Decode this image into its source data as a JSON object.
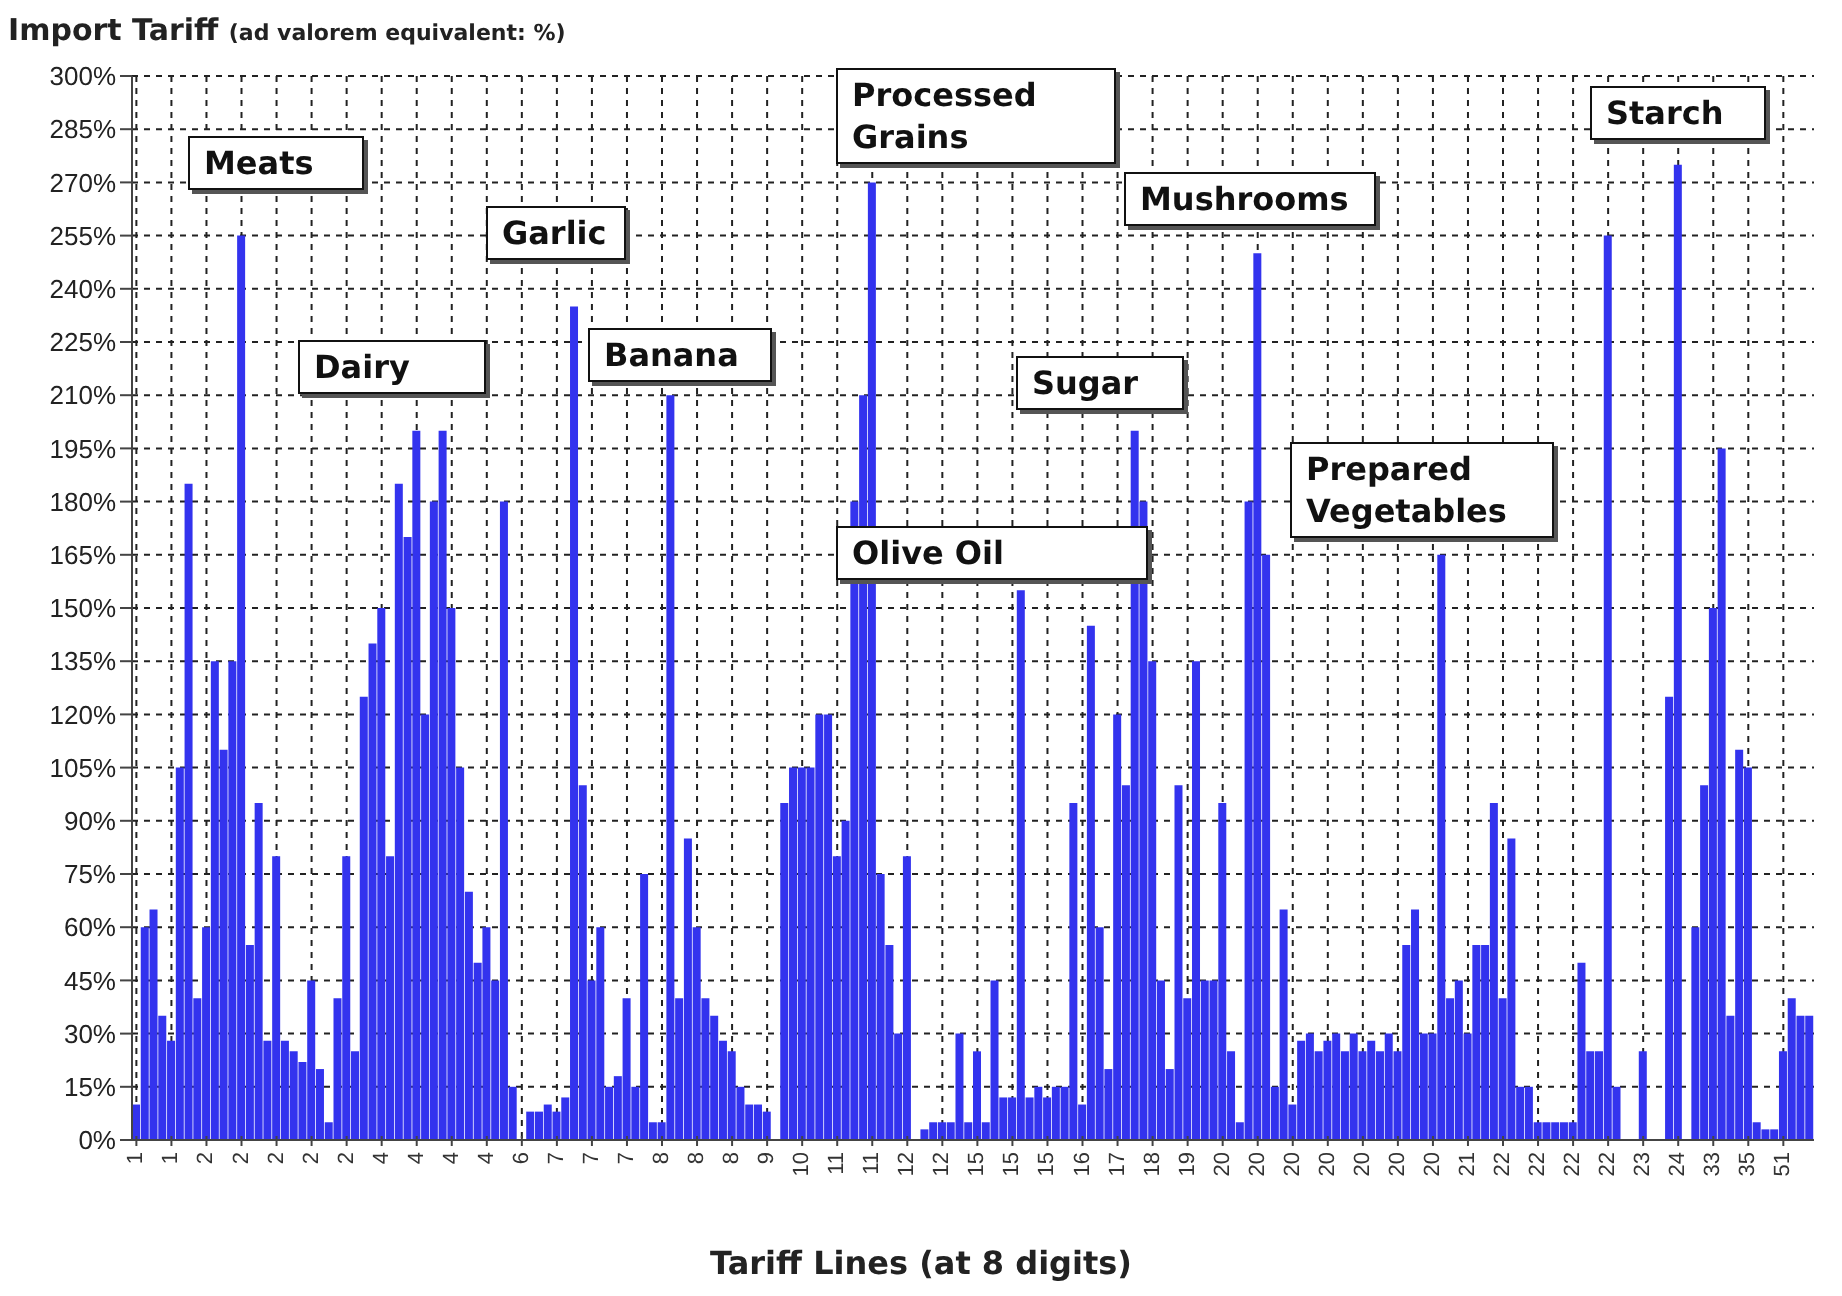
{
  "chart_data": {
    "type": "bar",
    "title": "Import Tariff",
    "subtitle": "(ad valorem equivalent: %)",
    "xlabel": "Tariff Lines (at 8 digits)",
    "categories": [
      "1",
      null,
      null,
      null,
      "1",
      null,
      null,
      null,
      "2",
      null,
      null,
      null,
      "2",
      null,
      null,
      null,
      "2",
      null,
      null,
      null,
      "2",
      null,
      null,
      null,
      "2",
      null,
      null,
      null,
      "4",
      null,
      null,
      null,
      "4",
      null,
      null,
      null,
      "4",
      null,
      null,
      null,
      "4",
      null,
      null,
      null,
      "6",
      null,
      null,
      null,
      "7",
      null,
      null,
      null,
      "7",
      null,
      null,
      null,
      "7",
      null,
      null,
      null,
      "8",
      null,
      null,
      null,
      "8",
      null,
      null,
      null,
      "8",
      null,
      null,
      null,
      "9",
      null,
      null,
      null,
      "10",
      null,
      null,
      null,
      "11",
      null,
      null,
      null,
      "11",
      null,
      null,
      null,
      "12",
      null,
      null,
      null,
      "12",
      null,
      null,
      null,
      "15",
      null,
      null,
      null,
      "15",
      null,
      null,
      null,
      "15",
      null,
      null,
      null,
      "16",
      null,
      null,
      null,
      "17",
      null,
      null,
      null,
      "18",
      null,
      null,
      null,
      "19",
      null,
      null,
      null,
      "20",
      null,
      null,
      null,
      "20",
      null,
      null,
      null,
      "20",
      null,
      null,
      null,
      "20",
      null,
      null,
      null,
      "20",
      null,
      null,
      null,
      "20",
      null,
      null,
      null,
      "20",
      null,
      null,
      null,
      "21",
      null,
      null,
      null,
      "22",
      null,
      null,
      null,
      "22",
      null,
      null,
      null,
      "22",
      null,
      null,
      null,
      "22",
      null,
      null,
      null,
      "23",
      null,
      null,
      null,
      "24",
      null,
      null,
      null,
      "33",
      null,
      null,
      null,
      "35",
      null,
      null,
      null,
      "51",
      null,
      null,
      null
    ],
    "values": [
      10,
      60,
      65,
      35,
      28,
      105,
      185,
      40,
      60,
      135,
      110,
      135,
      255,
      55,
      95,
      28,
      80,
      28,
      25,
      22,
      45,
      20,
      5,
      40,
      80,
      25,
      125,
      140,
      150,
      80,
      185,
      170,
      200,
      120,
      180,
      200,
      150,
      105,
      70,
      50,
      60,
      45,
      180,
      15,
      0,
      8,
      8,
      10,
      8,
      12,
      235,
      100,
      45,
      60,
      15,
      18,
      40,
      15,
      75,
      5,
      5,
      210,
      40,
      85,
      60,
      40,
      35,
      28,
      25,
      15,
      10,
      10,
      8,
      0,
      95,
      105,
      105,
      105,
      120,
      120,
      80,
      90,
      180,
      210,
      270,
      75,
      55,
      30,
      80,
      0,
      3,
      5,
      5,
      5,
      30,
      5,
      25,
      5,
      45,
      12,
      12,
      155,
      12,
      15,
      12,
      15,
      15,
      95,
      10,
      145,
      60,
      20,
      120,
      100,
      200,
      180,
      135,
      45,
      20,
      100,
      40,
      135,
      45,
      45,
      95,
      25,
      5,
      180,
      250,
      165,
      15,
      65,
      10,
      28,
      30,
      25,
      28,
      30,
      25,
      30,
      25,
      28,
      25,
      30,
      25,
      55,
      65,
      30,
      30,
      165,
      40,
      45,
      30,
      55,
      55,
      95,
      40,
      85,
      15,
      15,
      5,
      5,
      5,
      5,
      5,
      50,
      25,
      25,
      255,
      15,
      0,
      0,
      25,
      0,
      0,
      125,
      275,
      0,
      60,
      100,
      150,
      195,
      35,
      110,
      105,
      5,
      3,
      3,
      25,
      40,
      35,
      35
    ],
    "color": "#3333ee",
    "ylim": [
      0,
      300
    ],
    "yticks": [
      {
        "value": 0,
        "label": "0%"
      },
      {
        "value": 15,
        "label": "15%"
      },
      {
        "value": 30,
        "label": "30%"
      },
      {
        "value": 45,
        "label": "45%"
      },
      {
        "value": 60,
        "label": "60%"
      },
      {
        "value": 75,
        "label": "75%"
      },
      {
        "value": 90,
        "label": "90%"
      },
      {
        "value": 105,
        "label": "105%"
      },
      {
        "value": 120,
        "label": "120%"
      },
      {
        "value": 135,
        "label": "135%"
      },
      {
        "value": 150,
        "label": "150%"
      },
      {
        "value": 165,
        "label": "165%"
      },
      {
        "value": 180,
        "label": "180%"
      },
      {
        "value": 195,
        "label": "195%"
      },
      {
        "value": 210,
        "label": "210%"
      },
      {
        "value": 225,
        "label": "225%"
      },
      {
        "value": 240,
        "label": "240%"
      },
      {
        "value": 255,
        "label": "255%"
      },
      {
        "value": 270,
        "label": "270%"
      },
      {
        "value": 285,
        "label": "285%"
      },
      {
        "value": 300,
        "label": "300%"
      }
    ],
    "grid": true,
    "annotations": [
      "Meats",
      "Garlic",
      "Dairy",
      "Banana",
      "Processed Grains",
      "Olive Oil",
      "Sugar",
      "Mushrooms",
      "Prepared Vegetables",
      "Starch"
    ]
  }
}
